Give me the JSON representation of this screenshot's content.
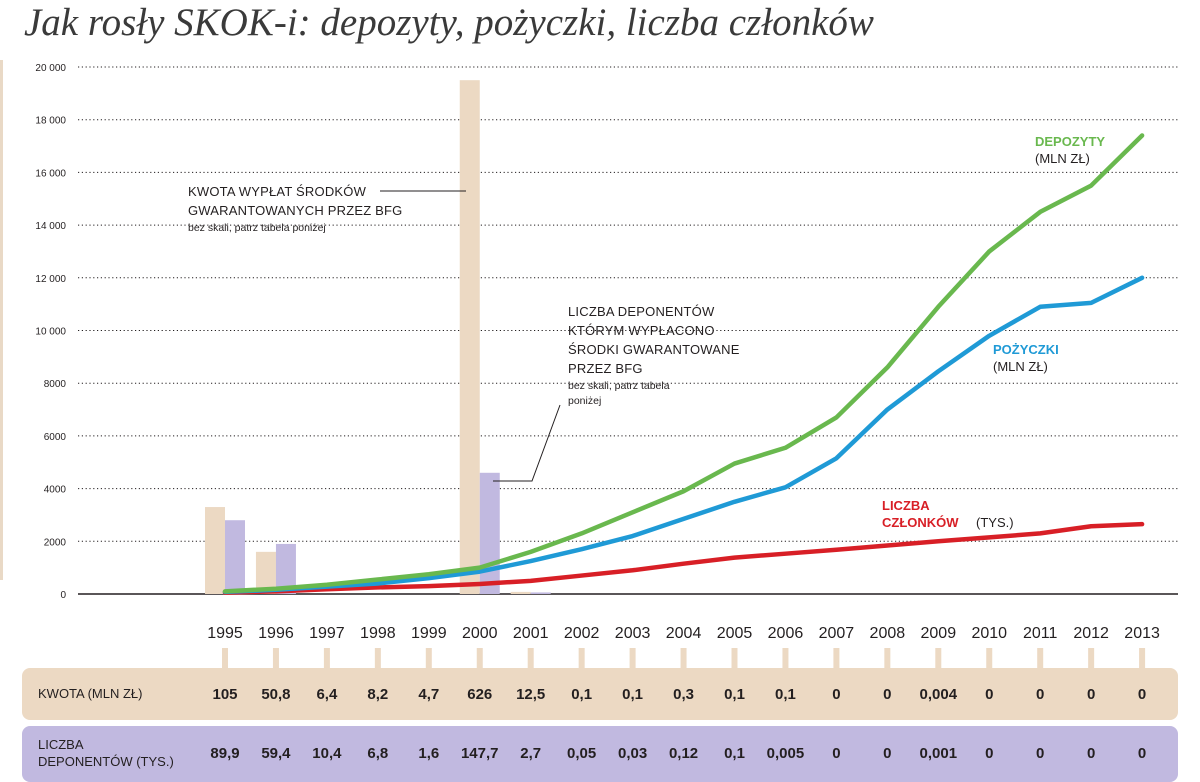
{
  "title": "Jak rosły SKOK-i: depozyty, pożyczki, liczba członków",
  "colors": {
    "depozyty": "#69b84e",
    "pozyczki": "#1f9ad6",
    "czlonkowie": "#d81f26",
    "kwota_bar": "#ecd9c3",
    "deponenci_bar": "#c1b9e0"
  },
  "annotations": {
    "kwota_line1": "KWOTA WYPŁAT ŚRODKÓW",
    "kwota_line2": "GWARANTOWANYCH PRZEZ BFG",
    "kwota_note": "bez skali, patrz tabela poniżej",
    "dep_line1": "LICZBA DEPONENTÓW",
    "dep_line2": "KTÓRYM WYPŁACONO",
    "dep_line3": "ŚRODKI GWARANTOWANE",
    "dep_line4": "PRZEZ BFG",
    "dep_note1": "bez skali, patrz tabela",
    "dep_note2": "poniżej"
  },
  "series_labels": {
    "depozyty_name": "DEPOZYTY",
    "depozyty_unit": "(MLN ZŁ)",
    "pozyczki_name": "POŻYCZKI",
    "pozyczki_unit": "(MLN ZŁ)",
    "czlonkowie_name1": "LICZBA",
    "czlonkowie_name2": "CZŁONKÓW",
    "czlonkowie_unit": "(TYS.)"
  },
  "chart_data": {
    "type": "line",
    "ylim": [
      0,
      20000
    ],
    "yticks": [
      "20 000",
      "18 000",
      "16 000",
      "14 000",
      "12 000",
      "10 000",
      "8000",
      "6000",
      "4000",
      "2000",
      "0"
    ],
    "ytick_values": [
      20000,
      18000,
      16000,
      14000,
      12000,
      10000,
      8000,
      6000,
      4000,
      2000,
      0
    ],
    "grid": true,
    "x": [
      "1995",
      "1996",
      "1997",
      "1998",
      "1999",
      "2000",
      "2001",
      "2002",
      "2003",
      "2004",
      "2005",
      "2006",
      "2007",
      "2008",
      "2009",
      "2010",
      "2011",
      "2012",
      "2013"
    ],
    "series": [
      {
        "name": "DEPOZYTY",
        "values": [
          100,
          200,
          350,
          550,
          750,
          1000,
          1600,
          2300,
          3100,
          3900,
          4950,
          5550,
          6700,
          8600,
          10900,
          13000,
          14500,
          15500,
          17400
        ]
      },
      {
        "name": "POŻYCZKI",
        "values": [
          80,
          160,
          280,
          400,
          600,
          850,
          1250,
          1700,
          2200,
          2850,
          3500,
          4050,
          5150,
          7000,
          8450,
          9800,
          10900,
          11050,
          12000
        ]
      },
      {
        "name": "LICZBA CZŁONKÓW",
        "values": [
          50,
          100,
          180,
          250,
          300,
          380,
          500,
          700,
          900,
          1150,
          1380,
          1530,
          1680,
          1840,
          2000,
          2150,
          2300,
          2570,
          2650
        ]
      }
    ],
    "bars_no_scale": {
      "kwota": {
        "1995": 3300,
        "1996": 1600,
        "2000": 19500,
        "2001": 80
      },
      "deponenci": {
        "1995": 2800,
        "1996": 1900,
        "2000": 4600,
        "2001": 60
      }
    }
  },
  "table": {
    "kwota_label": "KWOTA (MLN ZŁ)",
    "kwota_values": [
      "105",
      "50,8",
      "6,4",
      "8,2",
      "4,7",
      "626",
      "12,5",
      "0,1",
      "0,1",
      "0,3",
      "0,1",
      "0,1",
      "0",
      "0",
      "0,004",
      "0",
      "0",
      "0",
      "0"
    ],
    "dep_label_1": "LICZBA",
    "dep_label_2": "DEPONENTÓW (TYS.)",
    "dep_values": [
      "89,9",
      "59,4",
      "10,4",
      "6,8",
      "1,6",
      "147,7",
      "2,7",
      "0,05",
      "0,03",
      "0,12",
      "0,1",
      "0,005",
      "0",
      "0",
      "0,001",
      "0",
      "0",
      "0",
      "0"
    ]
  }
}
